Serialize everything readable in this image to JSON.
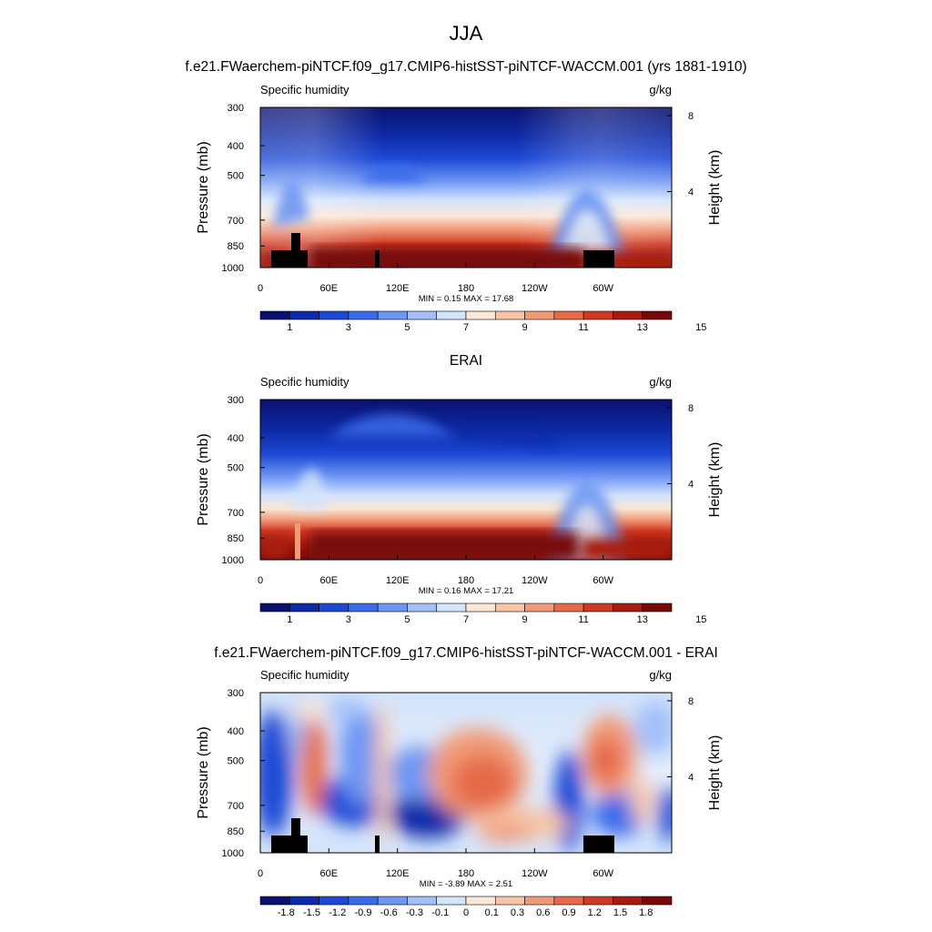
{
  "page": {
    "title": "JJA",
    "subtitle_model": "f.e21.FWaerchem-piNTCF.f09_g17.CMIP6-histSST-piNTCF-WACCM.001 (yrs 1881-1910)",
    "subtitle_obs": "ERAI",
    "subtitle_diff": "f.e21.FWaerchem-piNTCF.f09_g17.CMIP6-histSST-piNTCF-WACCM.001 - ERAI"
  },
  "colors": {
    "abs_scale": [
      "#08126e",
      "#0e2aa8",
      "#1c48d4",
      "#3a6cea",
      "#6d96f3",
      "#a3c1f8",
      "#d3e4fb",
      "#fbe7d6",
      "#f8c4a6",
      "#f19a78",
      "#e56a4a",
      "#d03a22",
      "#a81b10",
      "#780707"
    ],
    "diff_scale": [
      "#08126e",
      "#0e2aa8",
      "#1c48d4",
      "#3a6cea",
      "#6d96f3",
      "#a3c1f8",
      "#d3e4fb",
      "#fbe7d6",
      "#f8c4a6",
      "#f19a78",
      "#e56a4a",
      "#d03a22",
      "#a81b10",
      "#780707"
    ]
  },
  "chart_data": [
    {
      "type": "heatmap",
      "title": "f.e21.FWaerchem-piNTCF.f09_g17.CMIP6-histSST-piNTCF-WACCM.001 (yrs 1881-1910)",
      "left_label": "Specific humidity",
      "right_label": "g/kg",
      "ylabel": "Pressure (mb)",
      "ylabel_right": "Height (km)",
      "x_ticks": [
        "0",
        "60E",
        "120E",
        "180",
        "120W",
        "60W"
      ],
      "y_ticks": [
        "300",
        "400",
        "500",
        "700",
        "850",
        "1000"
      ],
      "y_right_ticks": [
        "8",
        "4"
      ],
      "minmax": "MIN =   0.15  MAX =   17.68",
      "colorbar_labels": [
        "1",
        "3",
        "5",
        "7",
        "9",
        "11",
        "13",
        "15"
      ],
      "min": 0.15,
      "max": 17.68
    },
    {
      "type": "heatmap",
      "title": "ERAI",
      "left_label": "Specific humidity",
      "right_label": "g/kg",
      "ylabel": "Pressure (mb)",
      "ylabel_right": "Height (km)",
      "x_ticks": [
        "0",
        "60E",
        "120E",
        "180",
        "120W",
        "60W"
      ],
      "y_ticks": [
        "300",
        "400",
        "500",
        "700",
        "850",
        "1000"
      ],
      "y_right_ticks": [
        "8",
        "4"
      ],
      "minmax": "MIN =   0.16  MAX =   17.21",
      "colorbar_labels": [
        "1",
        "3",
        "5",
        "7",
        "9",
        "11",
        "13",
        "15"
      ],
      "min": 0.16,
      "max": 17.21
    },
    {
      "type": "heatmap",
      "title": "f.e21.FWaerchem-piNTCF.f09_g17.CMIP6-histSST-piNTCF-WACCM.001 - ERAI",
      "left_label": "Specific humidity",
      "right_label": "g/kg",
      "ylabel": "Pressure (mb)",
      "ylabel_right": "Height (km)",
      "x_ticks": [
        "0",
        "60E",
        "120E",
        "180",
        "120W",
        "60W"
      ],
      "y_ticks": [
        "300",
        "400",
        "500",
        "700",
        "850",
        "1000"
      ],
      "y_right_ticks": [
        "8",
        "4"
      ],
      "minmax": "MIN =  -3.89  MAX =   2.51",
      "colorbar_labels": [
        "-1.8",
        "-1.5",
        "-1.2",
        "-0.9",
        "-0.6",
        "-0.3",
        "-0.1",
        "0",
        "0.1",
        "0.3",
        "0.6",
        "0.9",
        "1.2",
        "1.5",
        "1.8"
      ],
      "min": -3.89,
      "max": 2.51
    }
  ]
}
